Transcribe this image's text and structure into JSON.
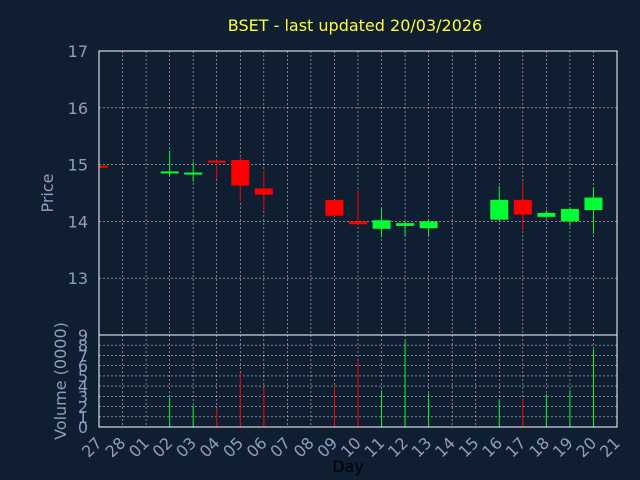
{
  "colors": {
    "background": "#0f1e30",
    "title": "#ffff33",
    "up": "#00ff33",
    "down": "#ff0000",
    "axis_text": "#8aa0c0",
    "xlabel_text": "#000000",
    "grid": "#ffffff"
  },
  "chart_data": {
    "type": "candlestick",
    "title": "BSET - last updated 20/03/2026",
    "ylabel": "Price",
    "volume_ylabel": "Volume (0000)",
    "xlabel": "Day",
    "price_ylim": [
      12.0,
      17.0
    ],
    "price_ticks": [
      "13",
      "14",
      "15",
      "16",
      "17"
    ],
    "price_tick_values": [
      13,
      14,
      15,
      16,
      17
    ],
    "volume_ylim": [
      0,
      9
    ],
    "volume_ticks": [
      "0",
      "1",
      "2",
      "3",
      "4",
      "5",
      "6",
      "7",
      "8",
      "9"
    ],
    "grid": true,
    "x_ticks": [
      "27",
      "28",
      "01",
      "02",
      "03",
      "04",
      "05",
      "06",
      "07",
      "08",
      "09",
      "10",
      "11",
      "12",
      "13",
      "14",
      "15",
      "16",
      "17",
      "18",
      "19",
      "20",
      "21"
    ],
    "candles": [
      {
        "day": "27",
        "index": 0,
        "open": 14.98,
        "high": 14.99,
        "low": 14.96,
        "close": 14.97,
        "volume": 0.0
      },
      {
        "day": "02",
        "index": 3,
        "open": 14.85,
        "high": 15.25,
        "low": 14.8,
        "close": 14.88,
        "volume": 2.9
      },
      {
        "day": "03",
        "index": 4,
        "open": 14.83,
        "high": 15.05,
        "low": 14.7,
        "close": 14.86,
        "volume": 2.1
      },
      {
        "day": "04",
        "index": 5,
        "open": 15.07,
        "high": 15.1,
        "low": 14.75,
        "close": 15.04,
        "volume": 1.8
      },
      {
        "day": "05",
        "index": 6,
        "open": 15.08,
        "high": 15.15,
        "low": 14.35,
        "close": 14.63,
        "volume": 5.3
      },
      {
        "day": "06",
        "index": 7,
        "open": 14.58,
        "high": 14.9,
        "low": 14.2,
        "close": 14.47,
        "volume": 3.8
      },
      {
        "day": "09",
        "index": 10,
        "open": 14.38,
        "high": 14.38,
        "low": 14.08,
        "close": 14.1,
        "volume": 4.0
      },
      {
        "day": "10",
        "index": 11,
        "open": 14.0,
        "high": 14.55,
        "low": 13.93,
        "close": 13.95,
        "volume": 6.4
      },
      {
        "day": "11",
        "index": 12,
        "open": 13.87,
        "high": 14.22,
        "low": 13.72,
        "close": 14.02,
        "volume": 3.6
      },
      {
        "day": "12",
        "index": 13,
        "open": 13.92,
        "high": 14.0,
        "low": 13.75,
        "close": 13.97,
        "volume": 8.4
      },
      {
        "day": "13",
        "index": 14,
        "open": 13.88,
        "high": 14.03,
        "low": 13.75,
        "close": 14.0,
        "volume": 3.3
      },
      {
        "day": "16",
        "index": 17,
        "open": 14.03,
        "high": 14.62,
        "low": 14.0,
        "close": 14.38,
        "volume": 2.6
      },
      {
        "day": "17",
        "index": 18,
        "open": 14.38,
        "high": 14.7,
        "low": 13.85,
        "close": 14.12,
        "volume": 2.8
      },
      {
        "day": "18",
        "index": 19,
        "open": 14.08,
        "high": 14.2,
        "low": 14.05,
        "close": 14.15,
        "volume": 3.2
      },
      {
        "day": "19",
        "index": 20,
        "open": 14.0,
        "high": 14.25,
        "low": 13.92,
        "close": 14.22,
        "volume": 3.6
      },
      {
        "day": "20",
        "index": 21,
        "open": 14.2,
        "high": 14.6,
        "low": 13.78,
        "close": 14.42,
        "volume": 7.6
      }
    ]
  }
}
